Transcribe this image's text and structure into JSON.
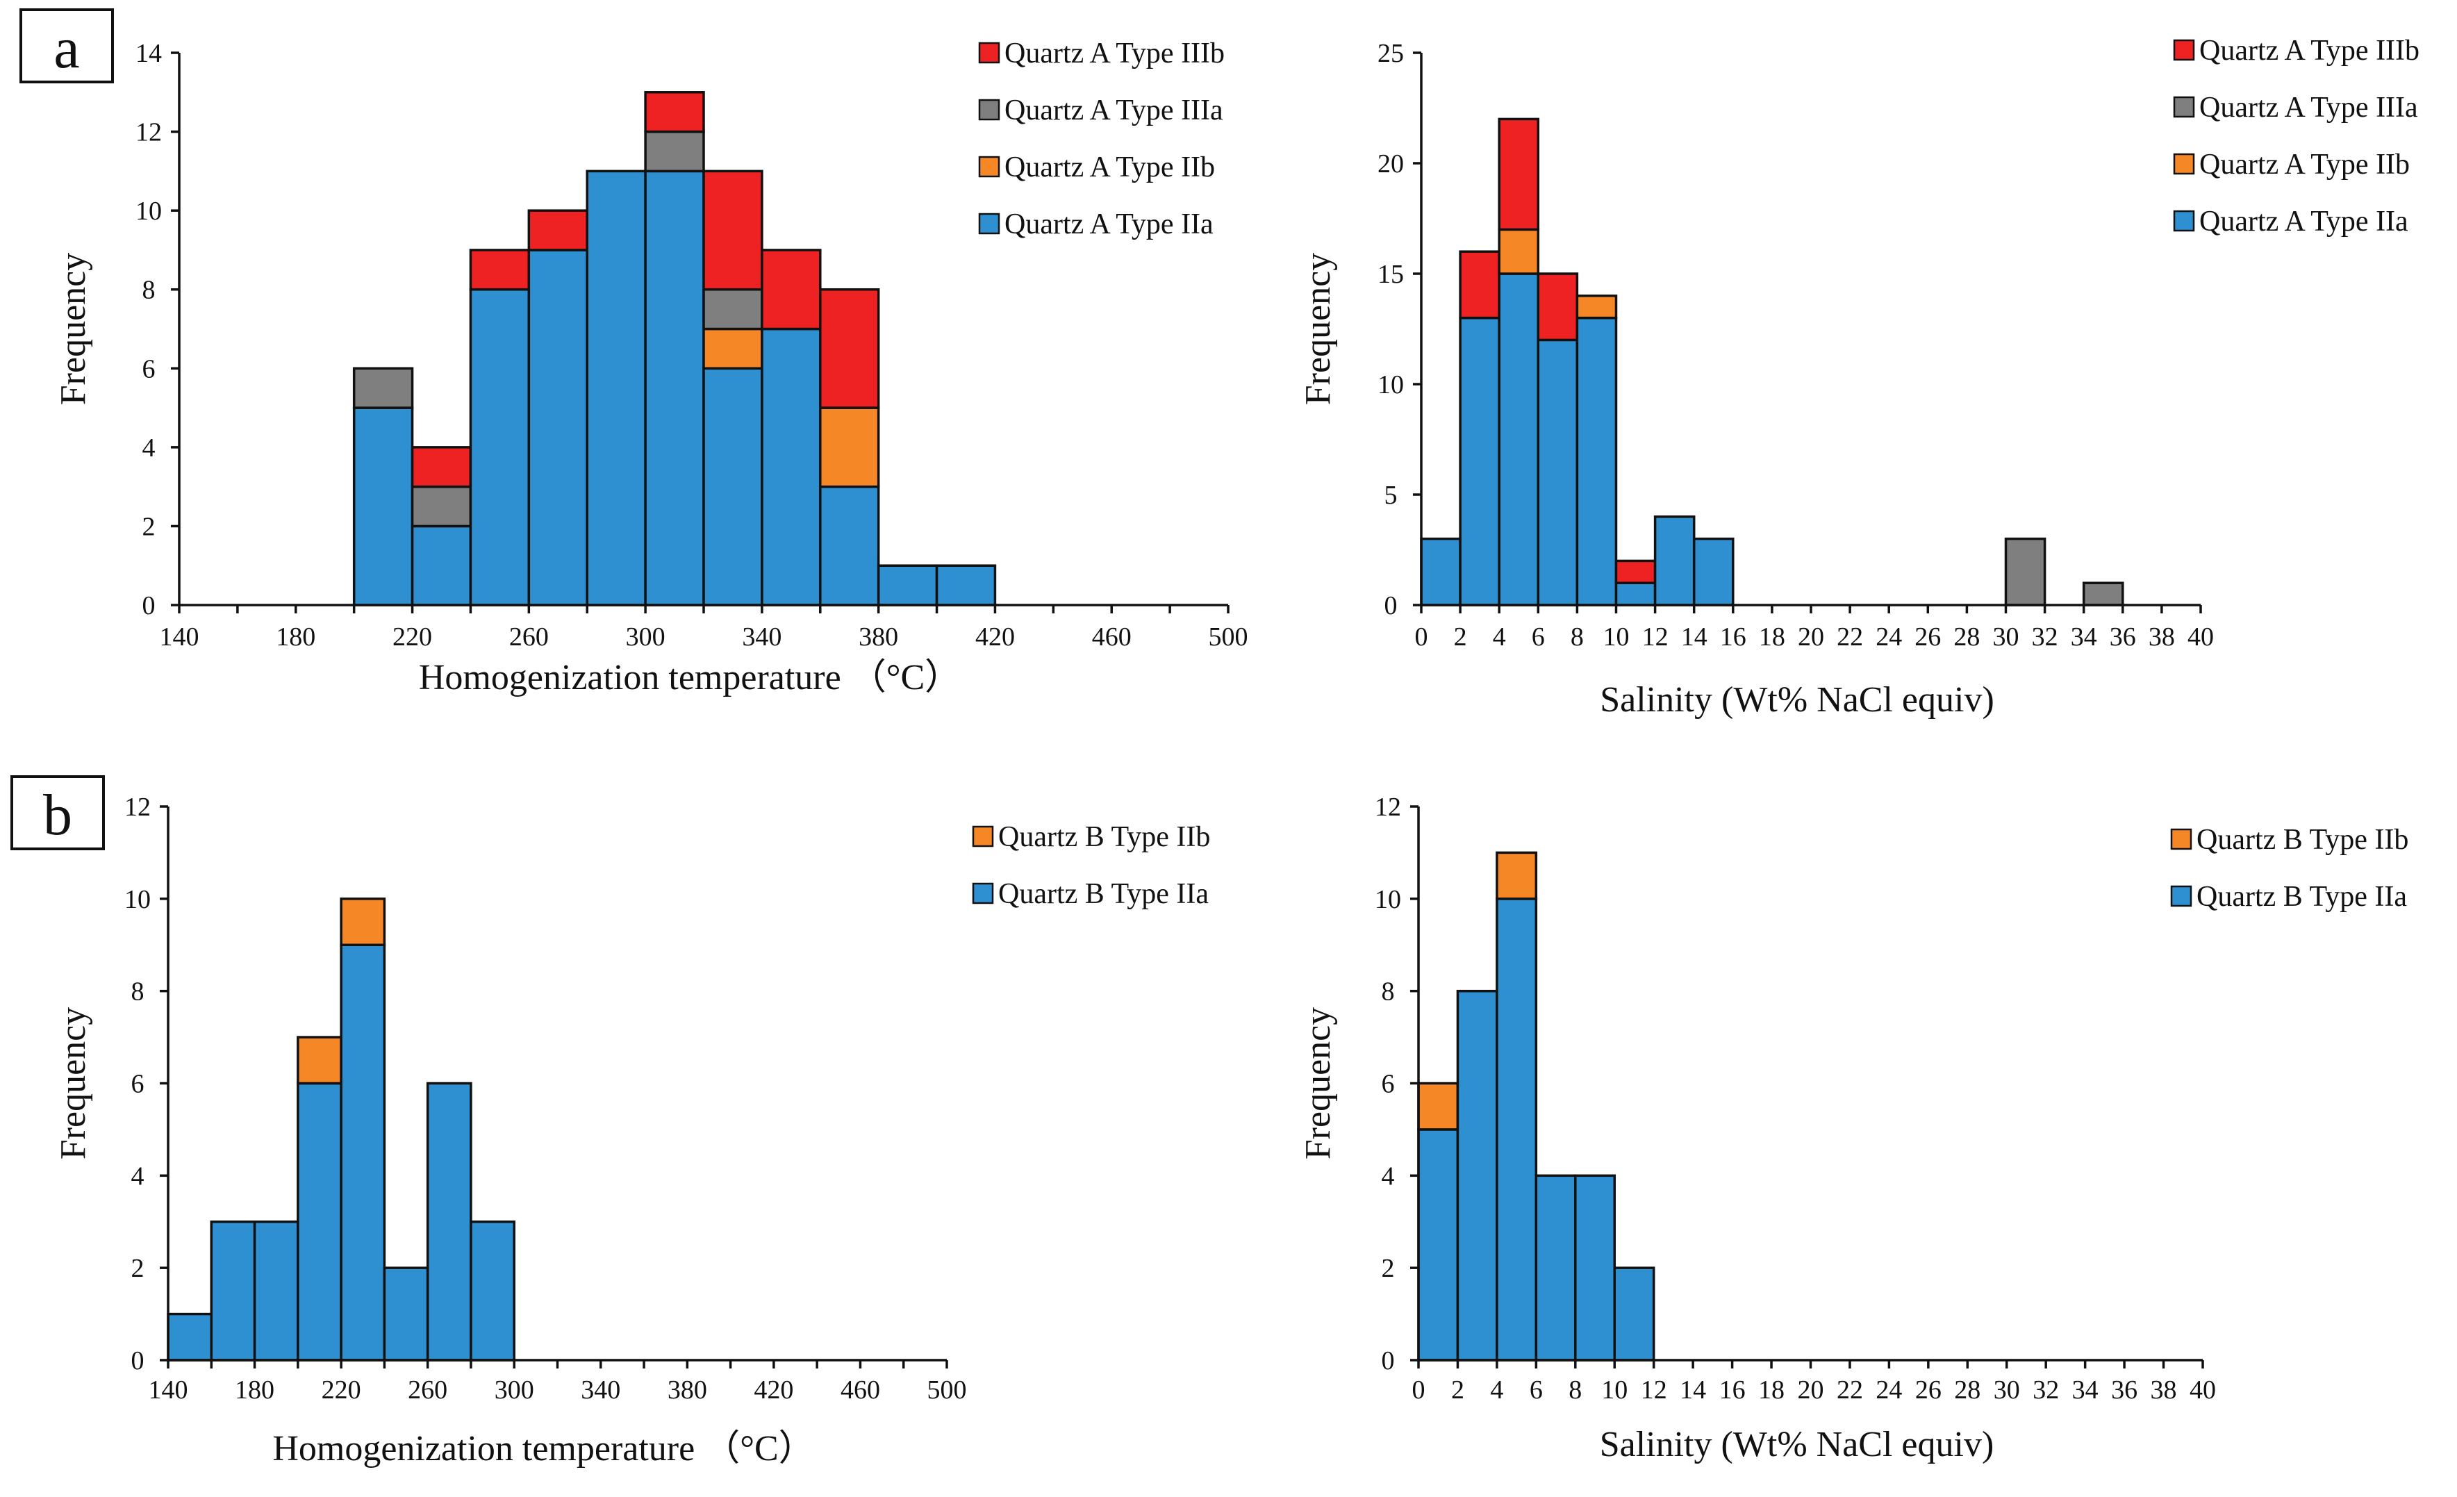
{
  "figure": {
    "panel_labels": [
      "a",
      "b"
    ],
    "colors": {
      "type_IIa": "#2e90d1",
      "type_IIb": "#f58727",
      "type_IIIa": "#7f7f7f",
      "type_IIIb": "#ee2222"
    }
  },
  "chart_data": [
    {
      "id": "a-temp",
      "panel": "a",
      "type": "bar",
      "stacked": true,
      "title": "",
      "xlabel": "Homogenization temperature （°C）",
      "ylabel": "Frequency",
      "bin_width": 20,
      "xlim": [
        140,
        500
      ],
      "ylim": [
        0,
        14
      ],
      "xticks": [
        140,
        180,
        220,
        260,
        300,
        340,
        380,
        420,
        460,
        500
      ],
      "yticks": [
        0,
        2,
        4,
        6,
        8,
        10,
        12,
        14
      ],
      "x_minor_step": 20,
      "bin_starts": [
        200,
        220,
        240,
        260,
        280,
        300,
        320,
        340,
        360,
        380,
        400
      ],
      "series": [
        {
          "name": "Quartz A Type IIa",
          "color_key": "type_IIa",
          "values": [
            5,
            2,
            8,
            9,
            11,
            11,
            6,
            7,
            3,
            1,
            1
          ]
        },
        {
          "name": "Quartz A Type IIb",
          "color_key": "type_IIb",
          "values": [
            0,
            0,
            0,
            0,
            0,
            0,
            1,
            0,
            2,
            0,
            0
          ]
        },
        {
          "name": "Quartz A Type IIIa",
          "color_key": "type_IIIa",
          "values": [
            1,
            1,
            0,
            0,
            0,
            1,
            1,
            0,
            0,
            0,
            0
          ]
        },
        {
          "name": "Quartz A Type IIIb",
          "color_key": "type_IIIb",
          "values": [
            0,
            1,
            1,
            1,
            0,
            1,
            3,
            2,
            3,
            0,
            0
          ]
        }
      ]
    },
    {
      "id": "a-salinity",
      "panel": "a",
      "type": "bar",
      "stacked": true,
      "title": "",
      "xlabel": "Salinity (Wt% NaCl equiv)",
      "ylabel": "Frequency",
      "bin_width": 2,
      "xlim": [
        0,
        40
      ],
      "ylim": [
        0,
        25
      ],
      "xticks": [
        0,
        2,
        4,
        6,
        8,
        10,
        12,
        14,
        16,
        18,
        20,
        22,
        24,
        26,
        28,
        30,
        32,
        34,
        36,
        38,
        40
      ],
      "yticks": [
        0,
        5,
        10,
        15,
        20,
        25
      ],
      "x_minor_step": 2,
      "bin_starts": [
        0,
        2,
        4,
        6,
        8,
        10,
        12,
        14,
        30,
        34
      ],
      "series": [
        {
          "name": "Quartz A Type IIa",
          "color_key": "type_IIa",
          "values": [
            3,
            13,
            15,
            12,
            13,
            1,
            4,
            3,
            0,
            0
          ]
        },
        {
          "name": "Quartz A Type IIb",
          "color_key": "type_IIb",
          "values": [
            0,
            0,
            2,
            0,
            1,
            0,
            0,
            0,
            0,
            0
          ]
        },
        {
          "name": "Quartz A Type IIIa",
          "color_key": "type_IIIa",
          "values": [
            0,
            0,
            0,
            0,
            0,
            0,
            0,
            0,
            3,
            1
          ]
        },
        {
          "name": "Quartz A Type IIIb",
          "color_key": "type_IIIb",
          "values": [
            0,
            3,
            5,
            3,
            0,
            1,
            0,
            0,
            0,
            0
          ]
        }
      ]
    },
    {
      "id": "b-temp",
      "panel": "b",
      "type": "bar",
      "stacked": true,
      "title": "",
      "xlabel": "Homogenization temperature （°C）",
      "ylabel": "Frequency",
      "bin_width": 20,
      "xlim": [
        140,
        500
      ],
      "ylim": [
        0,
        12
      ],
      "xticks": [
        140,
        180,
        220,
        260,
        300,
        340,
        380,
        420,
        460,
        500
      ],
      "yticks": [
        0,
        2,
        4,
        6,
        8,
        10,
        12
      ],
      "x_minor_step": 20,
      "bin_starts": [
        140,
        160,
        180,
        200,
        220,
        240,
        260,
        280
      ],
      "series": [
        {
          "name": "Quartz B Type IIa",
          "color_key": "type_IIa",
          "values": [
            1,
            3,
            3,
            6,
            9,
            2,
            6,
            3
          ]
        },
        {
          "name": "Quartz B Type IIb",
          "color_key": "type_IIb",
          "values": [
            0,
            0,
            0,
            1,
            1,
            0,
            0,
            0
          ]
        }
      ]
    },
    {
      "id": "b-salinity",
      "panel": "b",
      "type": "bar",
      "stacked": true,
      "title": "",
      "xlabel": "Salinity (Wt% NaCl equiv)",
      "ylabel": "Frequency",
      "bin_width": 2,
      "xlim": [
        0,
        40
      ],
      "ylim": [
        0,
        12
      ],
      "xticks": [
        0,
        2,
        4,
        6,
        8,
        10,
        12,
        14,
        16,
        18,
        20,
        22,
        24,
        26,
        28,
        30,
        32,
        34,
        36,
        38,
        40
      ],
      "yticks": [
        0,
        2,
        4,
        6,
        8,
        10,
        12
      ],
      "x_minor_step": 2,
      "bin_starts": [
        0,
        2,
        4,
        6,
        8,
        10
      ],
      "series": [
        {
          "name": "Quartz B Type IIa",
          "color_key": "type_IIa",
          "values": [
            5,
            8,
            10,
            4,
            4,
            2
          ]
        },
        {
          "name": "Quartz B Type IIb",
          "color_key": "type_IIb",
          "values": [
            1,
            0,
            1,
            0,
            0,
            0
          ]
        }
      ]
    }
  ]
}
